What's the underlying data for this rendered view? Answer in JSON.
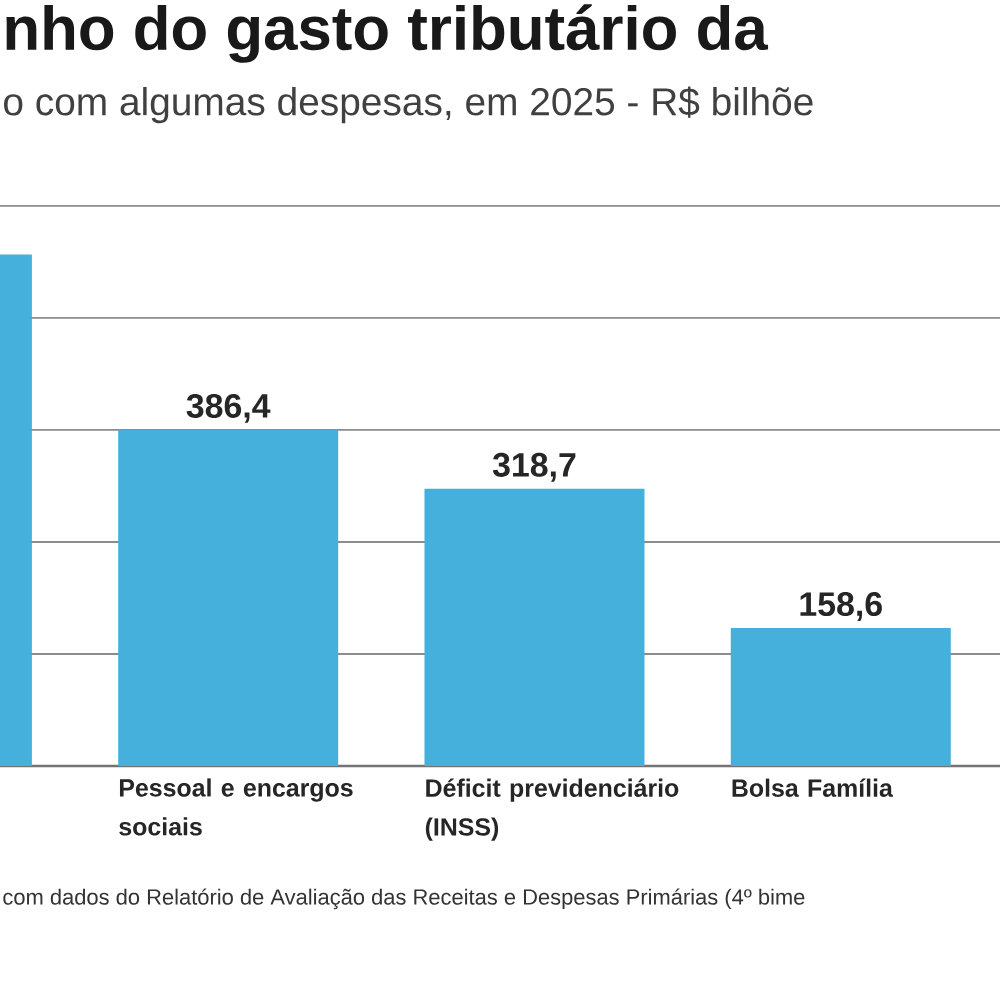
{
  "chart_data": {
    "type": "bar",
    "title": "nho do gasto tributário da",
    "subtitle": "o com algumas despesas, em 2025 - R$ bilhõe",
    "categories": [
      null,
      "Pessoal e encargos sociais",
      "Déficit previdenciário (INSS)",
      "Bolsa Família"
    ],
    "values": [
      588,
      386.4,
      318.7,
      158.6
    ],
    "value_labels": [
      null,
      "386,4",
      "318,7",
      "158,6"
    ],
    "color": "#45b0dc",
    "grid": "y",
    "annotations": [
      "com dados do Relatório de Avaliação das Receitas e Despesas Primárias (4º bime"
    ]
  }
}
